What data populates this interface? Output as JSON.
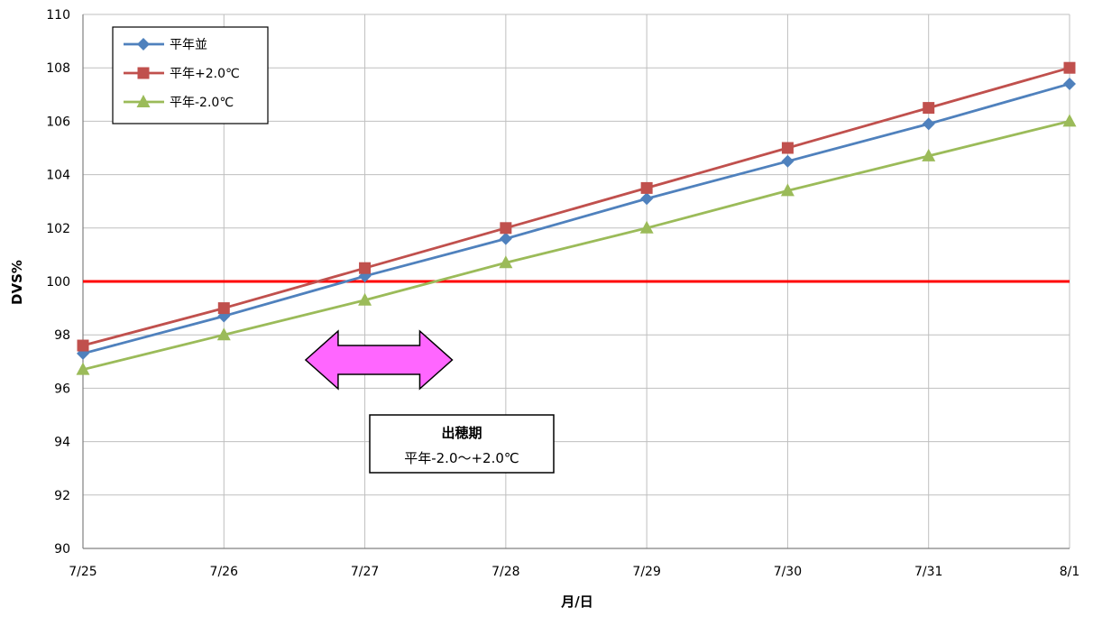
{
  "chart_data": {
    "type": "line",
    "title": "",
    "xlabel": "月/日",
    "ylabel": "DVS%",
    "categories": [
      "7/25",
      "7/26",
      "7/27",
      "7/28",
      "7/29",
      "7/30",
      "7/31",
      "8/1"
    ],
    "ylim": [
      90,
      110
    ],
    "yticks": [
      90,
      92,
      94,
      96,
      98,
      100,
      102,
      104,
      106,
      108,
      110
    ],
    "grid": true,
    "legend_position": "top-left",
    "series": [
      {
        "name": "平年並",
        "color": "#4F81BD",
        "marker": "diamond",
        "values": [
          97.3,
          98.7,
          100.2,
          101.6,
          103.1,
          104.5,
          105.9,
          107.4
        ]
      },
      {
        "name": "平年+2.0℃",
        "color": "#C0504D",
        "marker": "square",
        "values": [
          97.6,
          99.0,
          100.5,
          102.0,
          103.5,
          105.0,
          106.5,
          108.0
        ]
      },
      {
        "name": "平年-2.0℃",
        "color": "#9BBB59",
        "marker": "triangle",
        "values": [
          96.7,
          98.0,
          99.3,
          100.7,
          102.0,
          103.4,
          104.7,
          106.0
        ]
      }
    ],
    "reference_line": {
      "y": 100,
      "color": "#FF0000"
    },
    "annotation": {
      "lines": [
        "出穂期",
        "平年-2.0～+2.0℃"
      ],
      "arrow_x_range": [
        "7/26.6",
        "7/27.6"
      ],
      "arrow_color": "#FF66FF"
    }
  }
}
